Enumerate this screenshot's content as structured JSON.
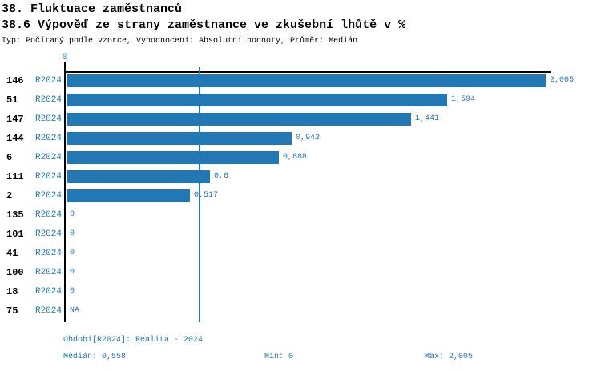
{
  "header": {
    "title": "38. Fluktuace zaměstnanců",
    "subtitle": "38.6 Výpověď ze strany zaměstnance ve zkušební lhůtě v %",
    "meta": "Typ: Počítaný podle vzorce, Vyhodnocení: Absolutní hodnoty, Průměr: Medián"
  },
  "colors": {
    "bar_blue": "#2277B5",
    "text_blue": "#2277B5",
    "axis_black": "#000000"
  },
  "chart_data": {
    "type": "bar",
    "orientation": "horizontal",
    "title": "38.6 Výpověď ze strany zaměstnance ve zkušební lhůtě v %",
    "axis_zero_label": "0",
    "series_label": "R2024",
    "categories": [
      "146",
      "51",
      "147",
      "144",
      "6",
      "111",
      "2",
      "135",
      "101",
      "41",
      "100",
      "18",
      "75"
    ],
    "values": [
      2.005,
      1.594,
      1.441,
      0.942,
      0.888,
      0.6,
      0.517,
      0,
      0,
      0,
      0,
      0,
      null
    ],
    "value_labels": [
      "2,005",
      "1,594",
      "1,441",
      "0,942",
      "0,888",
      "0,6",
      "0,517",
      "0",
      "0",
      "0",
      "0",
      "0",
      "NA"
    ],
    "xlim": [
      0,
      2.005
    ],
    "median_line_value": 0.558,
    "grid": false,
    "legend_position": "bottom"
  },
  "footer": {
    "period": "Období[R2024]: Realita - 2024",
    "median": "Medián: 0,558",
    "min": "Min: 0",
    "max": "Max: 2,005"
  }
}
